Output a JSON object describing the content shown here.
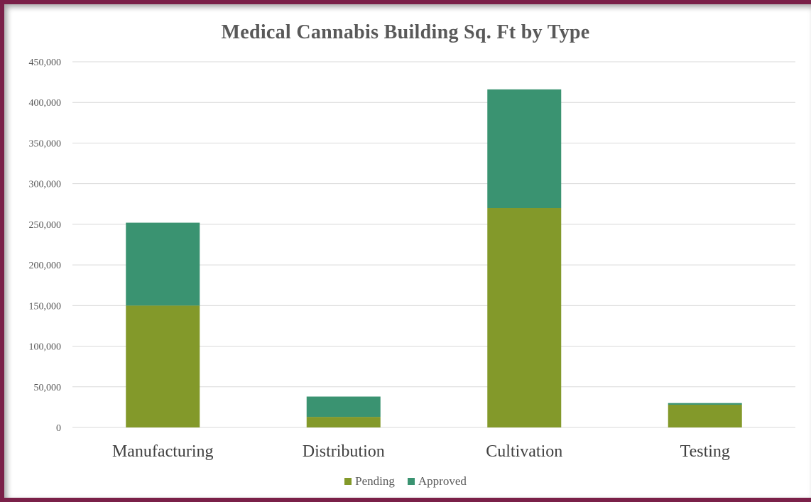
{
  "chart_data": {
    "type": "bar",
    "stacked": true,
    "title": "Medical Cannabis Building Sq. Ft by Type",
    "xlabel": "",
    "ylabel": "",
    "categories": [
      "Manufacturing",
      "Distribution",
      "Cultivation",
      "Testing"
    ],
    "series": [
      {
        "name": "Pending",
        "values": [
          150000,
          13000,
          270000,
          28000
        ],
        "color": "#83992a"
      },
      {
        "name": "Approved",
        "values": [
          102000,
          25000,
          146000,
          2000
        ],
        "color": "#3a9371"
      }
    ],
    "ylim": [
      0,
      450000
    ],
    "yticks": [
      0,
      50000,
      100000,
      150000,
      200000,
      250000,
      300000,
      350000,
      400000,
      450000
    ],
    "ytick_labels": [
      "0",
      "50,000",
      "100,000",
      "150,000",
      "200,000",
      "250,000",
      "300,000",
      "350,000",
      "400,000",
      "450,000"
    ],
    "grid": true,
    "legend_position": "bottom"
  }
}
